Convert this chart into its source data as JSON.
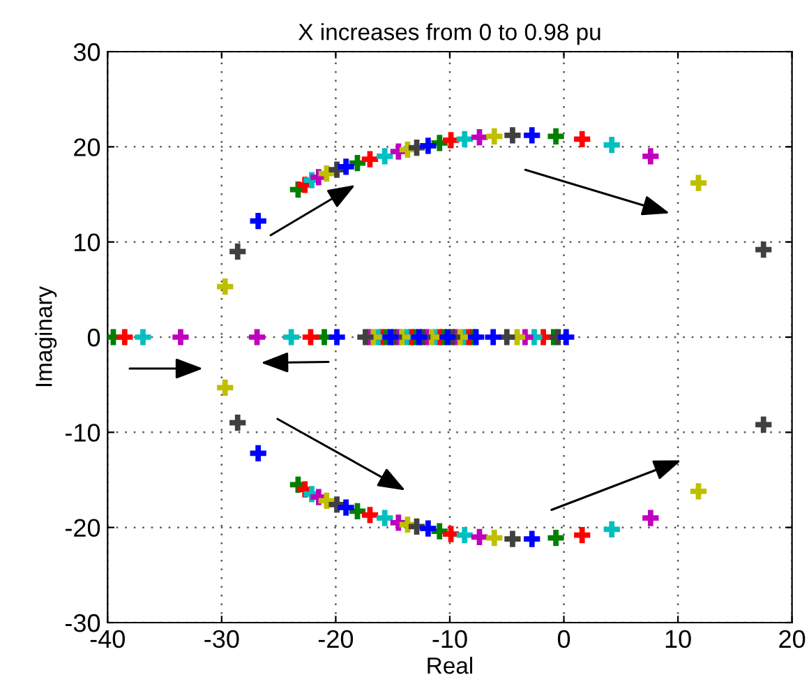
{
  "chart_data": {
    "type": "scatter",
    "title": "X increases from 0 to 0.98 pu",
    "xlabel": "Real",
    "ylabel": "Imaginary",
    "xlim": [
      -40,
      20
    ],
    "xticks": [
      -40,
      -30,
      -20,
      -10,
      0,
      10,
      20
    ],
    "ylim": [
      -30,
      30
    ],
    "yticks": [
      -30,
      -20,
      -10,
      0,
      10,
      20,
      30
    ],
    "grid": true,
    "legend": false,
    "marker": "cross",
    "series": [
      {
        "color": "#007f00",
        "x": [
          -23.3,
          -18.1,
          -10.9,
          -0.7,
          -23.3,
          -18.1,
          -10.9,
          -0.7,
          -39.5,
          -21.0,
          -0.9,
          -15.6,
          -13.1,
          -10.6,
          -8.0
        ],
        "values": [
          15.5,
          18.3,
          20.4,
          21.1,
          -15.5,
          -18.3,
          -20.4,
          -21.1,
          0,
          0,
          0,
          0,
          0,
          0,
          0
        ]
      },
      {
        "color": "#ff0000",
        "x": [
          -22.7,
          -17.0,
          -9.9,
          1.6,
          -22.7,
          -17.0,
          -9.9,
          1.6,
          -38.5,
          -22.2,
          -1.8,
          -16.0,
          -13.4,
          -10.9,
          -8.4
        ],
        "values": [
          16.0,
          18.7,
          20.7,
          20.8,
          -16.0,
          -18.7,
          -20.7,
          -20.8,
          0,
          0,
          0,
          0,
          0,
          0,
          0
        ]
      },
      {
        "color": "#00bfbf",
        "x": [
          -22.1,
          -15.7,
          -8.7,
          4.2,
          -22.1,
          -15.7,
          -8.7,
          4.2,
          -36.9,
          -23.9,
          -2.6,
          -16.3,
          -13.8,
          -11.3,
          -8.8
        ],
        "values": [
          16.5,
          19.0,
          20.8,
          20.2,
          -16.5,
          -19.0,
          -20.8,
          -20.2,
          0,
          0,
          0,
          0,
          0,
          0,
          0
        ]
      },
      {
        "color": "#bf00bf",
        "x": [
          -21.5,
          -14.5,
          -7.4,
          7.6,
          -21.5,
          -14.5,
          -7.4,
          7.6,
          -33.6,
          -26.9,
          -3.4,
          -17.0,
          -14.5,
          -12.0,
          -9.5
        ],
        "values": [
          16.8,
          19.5,
          21.0,
          19.0,
          -16.8,
          -19.5,
          -21.0,
          -19.0,
          0,
          0,
          0,
          0,
          0,
          0,
          0
        ]
      },
      {
        "color": "#bfbf00",
        "x": [
          -20.8,
          -13.7,
          -6.1,
          11.8,
          -29.7,
          -20.8,
          -13.7,
          -6.1,
          11.8,
          -29.7,
          -4.1,
          -16.7,
          -14.2,
          -11.6,
          -9.1
        ],
        "values": [
          17.2,
          19.7,
          21.1,
          16.2,
          5.3,
          -17.2,
          -19.7,
          -21.1,
          -16.2,
          -5.3,
          0,
          0,
          0,
          0,
          0
        ]
      },
      {
        "color": "#404040",
        "x": [
          -19.9,
          -12.9,
          -4.5,
          17.5,
          -28.6,
          -19.9,
          -12.9,
          -4.5,
          17.5,
          -28.6,
          -5.0,
          -0.5,
          -17.4,
          -14.9,
          -12.4,
          -9.8
        ],
        "values": [
          17.6,
          19.9,
          21.2,
          9.2,
          9.0,
          -17.6,
          -19.9,
          -21.2,
          -9.2,
          -9.0,
          0,
          0,
          0,
          0,
          0,
          0
        ]
      },
      {
        "color": "#0000ff",
        "x": [
          -19.1,
          -11.9,
          -2.8,
          -26.8,
          -19.1,
          -11.9,
          -2.8,
          -26.8,
          -19.9,
          -6.2,
          0.2,
          -15.2,
          -12.7,
          -10.2,
          -7.7
        ],
        "values": [
          17.9,
          20.1,
          21.2,
          12.2,
          -17.9,
          -20.1,
          -21.2,
          -12.2,
          0,
          0,
          0,
          0,
          0,
          0,
          0
        ]
      }
    ]
  }
}
